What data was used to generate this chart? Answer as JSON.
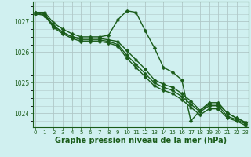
{
  "series": [
    {
      "x": [
        0,
        1,
        2,
        3,
        4,
        5,
        6,
        7,
        8,
        9,
        10,
        11,
        12,
        13,
        14,
        15,
        16,
        17,
        18,
        19,
        20,
        21,
        22,
        23
      ],
      "y": [
        1027.3,
        1027.3,
        1026.95,
        1026.75,
        1026.6,
        1026.5,
        1026.5,
        1026.5,
        1026.55,
        1027.05,
        1027.35,
        1027.3,
        1026.7,
        1026.15,
        1025.5,
        1025.35,
        1025.1,
        1023.75,
        1024.1,
        1024.35,
        1024.35,
        1024.0,
        1023.85,
        1023.7
      ]
    },
    {
      "x": [
        0,
        1,
        2,
        3,
        4,
        5,
        6,
        7,
        8,
        9,
        10,
        11,
        12,
        13,
        14,
        15,
        16,
        17,
        18,
        19,
        20,
        21,
        22,
        23
      ],
      "y": [
        1027.3,
        1027.25,
        1026.85,
        1026.65,
        1026.5,
        1026.45,
        1026.45,
        1026.45,
        1026.4,
        1026.35,
        1026.05,
        1025.75,
        1025.45,
        1025.1,
        1024.95,
        1024.85,
        1024.65,
        1024.4,
        1024.1,
        1024.3,
        1024.3,
        1024.0,
        1023.85,
        1023.7
      ]
    },
    {
      "x": [
        0,
        1,
        2,
        3,
        4,
        5,
        6,
        7,
        8,
        9,
        10,
        11,
        12,
        13,
        14,
        15,
        16,
        17,
        18,
        19,
        20,
        21,
        22,
        23
      ],
      "y": [
        1027.3,
        1027.2,
        1026.85,
        1026.65,
        1026.5,
        1026.4,
        1026.4,
        1026.4,
        1026.35,
        1026.25,
        1025.9,
        1025.6,
        1025.3,
        1025.0,
        1024.85,
        1024.75,
        1024.55,
        1024.3,
        1024.05,
        1024.25,
        1024.25,
        1023.9,
        1023.8,
        1023.65
      ]
    },
    {
      "x": [
        0,
        1,
        2,
        3,
        4,
        5,
        6,
        7,
        8,
        9,
        10,
        11,
        12,
        13,
        14,
        15,
        16,
        17,
        18,
        19,
        20,
        21,
        22,
        23
      ],
      "y": [
        1027.25,
        1027.2,
        1026.8,
        1026.6,
        1026.45,
        1026.35,
        1026.35,
        1026.35,
        1026.3,
        1026.2,
        1025.8,
        1025.5,
        1025.2,
        1024.9,
        1024.75,
        1024.65,
        1024.45,
        1024.2,
        1023.95,
        1024.15,
        1024.15,
        1023.85,
        1023.75,
        1023.6
      ]
    }
  ],
  "xlim": [
    -0.3,
    23.3
  ],
  "ylim": [
    1023.55,
    1027.65
  ],
  "xticks": [
    0,
    1,
    2,
    3,
    4,
    5,
    6,
    7,
    8,
    9,
    10,
    11,
    12,
    13,
    14,
    15,
    16,
    17,
    18,
    19,
    20,
    21,
    22,
    23
  ],
  "yticks": [
    1024,
    1025,
    1026,
    1027
  ],
  "xlabel": "Graphe pression niveau de la mer (hPa)",
  "bg_color": "#d0f0f0",
  "grid_color": "#b0c8c8",
  "line_color": "#1a5c1a",
  "marker_color": "#1a5c1a",
  "label_color": "#1a5c1a",
  "tick_fontsize": 5.0,
  "xlabel_fontsize": 7.0,
  "lw": 1.0,
  "ms": 2.5
}
